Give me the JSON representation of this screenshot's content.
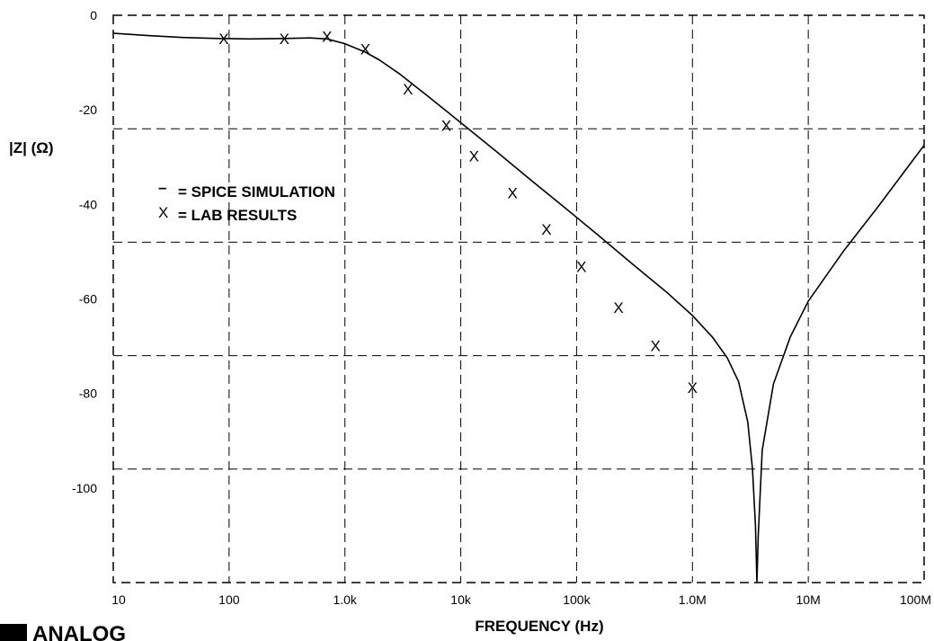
{
  "chart_data": {
    "type": "line",
    "title": "",
    "xlabel": "FREQUENCY (Hz)",
    "ylabel": "|Z| (Ω)",
    "x_scale": "log",
    "xlim": [
      10,
      100000000
    ],
    "ylim": [
      -120,
      0
    ],
    "x_ticks": [
      {
        "value": 10,
        "label": "10"
      },
      {
        "value": 100,
        "label": "100"
      },
      {
        "value": 1000,
        "label": "1.0k"
      },
      {
        "value": 10000,
        "label": "10k"
      },
      {
        "value": 100000,
        "label": "100k"
      },
      {
        "value": 1000000,
        "label": "1.0M"
      },
      {
        "value": 10000000,
        "label": "10M"
      },
      {
        "value": 100000000,
        "label": "100M"
      }
    ],
    "y_ticks": [
      {
        "value": 0,
        "label": "0"
      },
      {
        "value": -20,
        "label": "-20"
      },
      {
        "value": -40,
        "label": "-40"
      },
      {
        "value": -60,
        "label": "-60"
      },
      {
        "value": -80,
        "label": "-80"
      },
      {
        "value": -100,
        "label": "-100"
      }
    ],
    "grid": true,
    "legend": [
      {
        "symbol": "–",
        "label": "= SPICE SIMULATION"
      },
      {
        "symbol": "X",
        "label": "= LAB RESULTS"
      }
    ],
    "legend_position": "upper-left",
    "series": [
      {
        "style": "line",
        "points": [
          [
            10,
            -3.8
          ],
          [
            20,
            -4.3
          ],
          [
            40,
            -4.7
          ],
          [
            80,
            -4.9
          ],
          [
            150,
            -5.0
          ],
          [
            300,
            -4.9
          ],
          [
            500,
            -4.8
          ],
          [
            700,
            -5.0
          ],
          [
            1000,
            -6.0
          ],
          [
            1500,
            -7.8
          ],
          [
            2000,
            -9.5
          ],
          [
            3000,
            -12.5
          ],
          [
            5000,
            -16.8
          ],
          [
            8000,
            -20.8
          ],
          [
            12000,
            -24.3
          ],
          [
            20000,
            -28.7
          ],
          [
            40000,
            -34.8
          ],
          [
            80000,
            -40.8
          ],
          [
            150000,
            -46.3
          ],
          [
            300000,
            -52.5
          ],
          [
            600000,
            -58.6
          ],
          [
            1000000,
            -63.5
          ],
          [
            1500000,
            -68.2
          ],
          [
            2000000,
            -72.5
          ],
          [
            2500000,
            -77.5
          ],
          [
            3000000,
            -86.0
          ],
          [
            3300000,
            -96.0
          ],
          [
            3500000,
            -108.0
          ],
          [
            3600000,
            -120.0
          ],
          [
            3700000,
            -110.0
          ],
          [
            4000000,
            -92.0
          ],
          [
            5000000,
            -78.0
          ],
          [
            7000000,
            -68.0
          ],
          [
            10000000,
            -60.5
          ],
          [
            20000000,
            -50.0
          ],
          [
            40000000,
            -40.5
          ],
          [
            100000000,
            -27.5
          ]
        ]
      },
      {
        "style": "marker",
        "marker": "X",
        "points": [
          [
            90,
            -4.9
          ],
          [
            300,
            -4.9
          ],
          [
            700,
            -4.5
          ],
          [
            1500,
            -7.1
          ],
          [
            3500,
            -15.6
          ],
          [
            7500,
            -23.3
          ],
          [
            13000,
            -29.8
          ],
          [
            28000,
            -37.6
          ],
          [
            55000,
            -45.3
          ],
          [
            110000,
            -53.2
          ],
          [
            230000,
            -61.8
          ],
          [
            480000,
            -69.9
          ],
          [
            1000000,
            -78.7
          ]
        ]
      }
    ]
  },
  "logo": {
    "text": "ANALOG"
  }
}
